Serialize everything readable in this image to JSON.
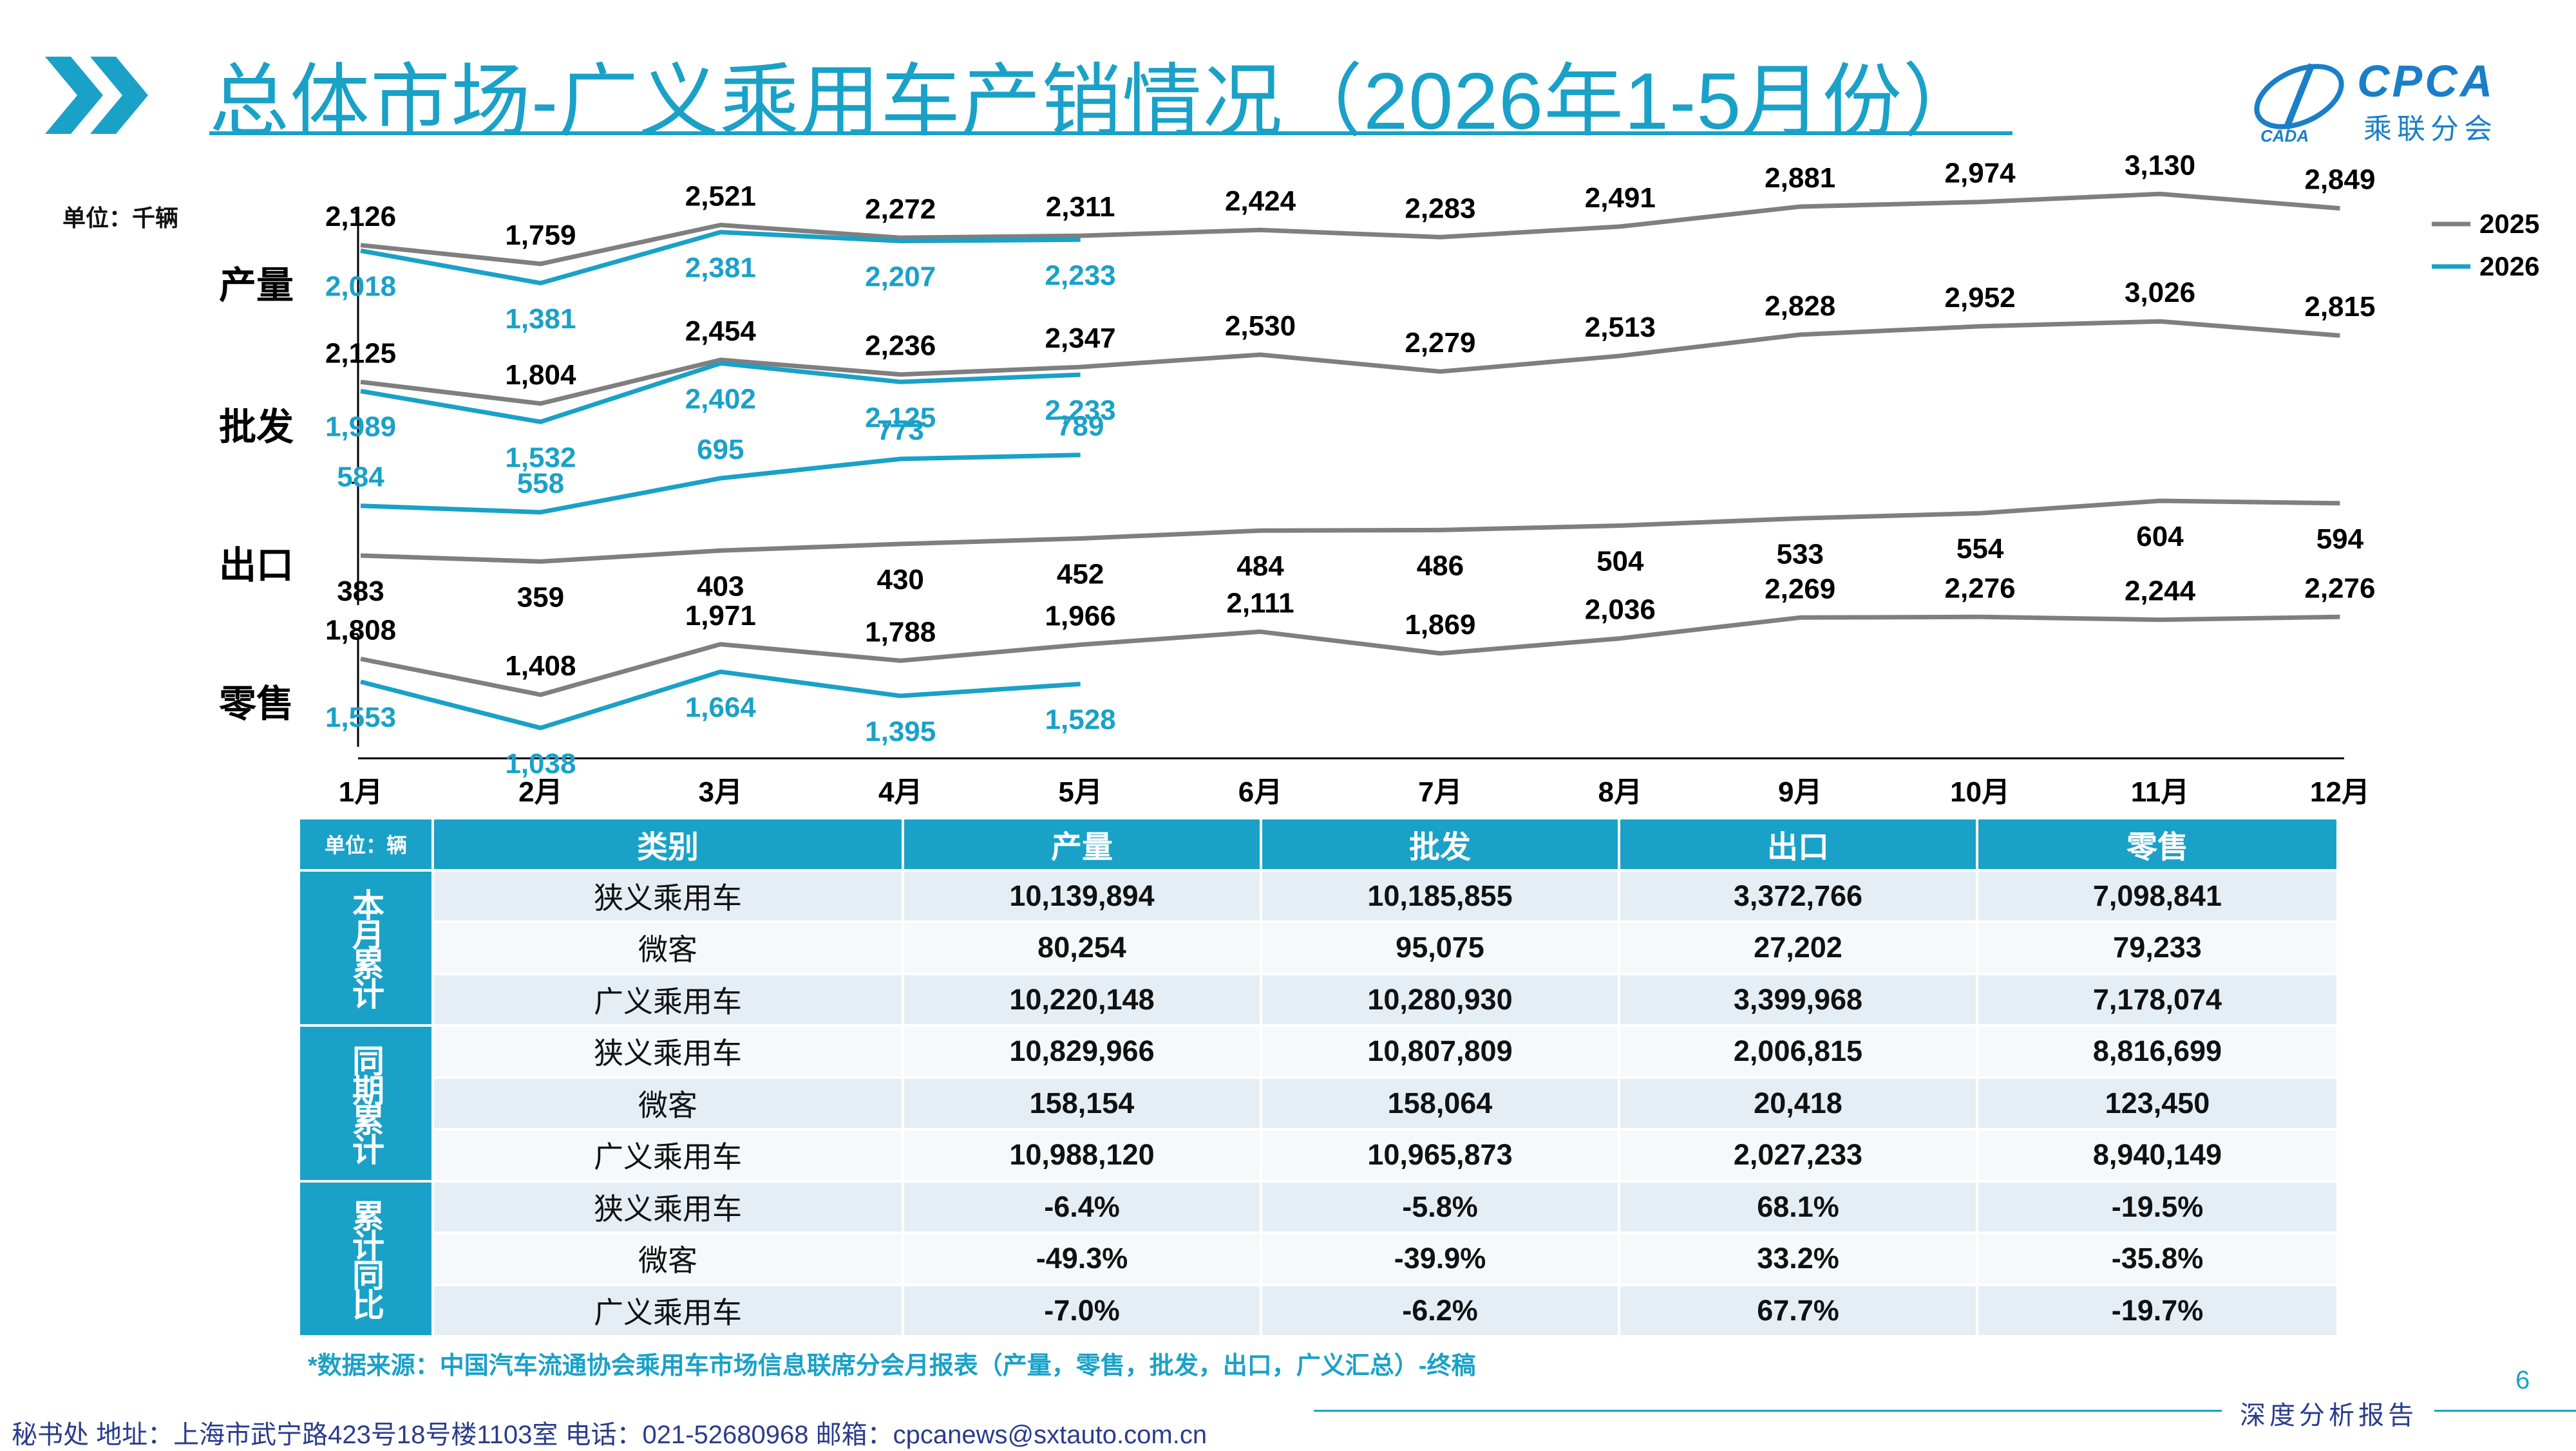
{
  "header": {
    "title": "总体市场-广义乘用车产销情况（2026年1-5月份）",
    "logo_text": "CPCA",
    "logo_sub": "乘联分会"
  },
  "chart_data": {
    "type": "line",
    "unit_label": "单位：千辆",
    "categories": [
      "1月",
      "2月",
      "3月",
      "4月",
      "5月",
      "6月",
      "7月",
      "8月",
      "9月",
      "10月",
      "11月",
      "12月"
    ],
    "legend": [
      "2025",
      "2026"
    ],
    "colors": {
      "2025": "#7f7f7f",
      "2026": "#1aa1c8"
    },
    "panels": [
      {
        "label": "产量",
        "series": [
          {
            "name": "2025",
            "values": [
              2126,
              1759,
              2521,
              2272,
              2311,
              2424,
              2283,
              2491,
              2881,
              2974,
              3130,
              2849
            ]
          },
          {
            "name": "2026",
            "values": [
              2018,
              1381,
              2381,
              2207,
              2233
            ]
          }
        ]
      },
      {
        "label": "批发",
        "series": [
          {
            "name": "2025",
            "values": [
              2125,
              1804,
              2454,
              2236,
              2347,
              2530,
              2279,
              2513,
              2828,
              2952,
              3026,
              2815
            ]
          },
          {
            "name": "2026",
            "values": [
              1989,
              1532,
              2402,
              2125,
              2233
            ]
          }
        ]
      },
      {
        "label": "出口",
        "series": [
          {
            "name": "2025",
            "values": [
              383,
              359,
              403,
              430,
              452,
              484,
              486,
              504,
              533,
              554,
              604,
              594
            ]
          },
          {
            "name": "2026",
            "values": [
              584,
              558,
              695,
              773,
              789
            ]
          }
        ]
      },
      {
        "label": "零售",
        "series": [
          {
            "name": "2025",
            "values": [
              1808,
              1408,
              1971,
              1788,
              1966,
              2111,
              1869,
              2036,
              2269,
              2276,
              2244,
              2276
            ]
          },
          {
            "name": "2026",
            "values": [
              1553,
              1038,
              1664,
              1395,
              1528
            ]
          }
        ]
      }
    ]
  },
  "table": {
    "unit": "单位：辆",
    "headers": [
      "类别",
      "产量",
      "批发",
      "出口",
      "零售"
    ],
    "groups": [
      {
        "label": "本月累计",
        "rows": [
          [
            "狭义乘用车",
            "10,139,894",
            "10,185,855",
            "3,372,766",
            "7,098,841"
          ],
          [
            "微客",
            "80,254",
            "95,075",
            "27,202",
            "79,233"
          ],
          [
            "广义乘用车",
            "10,220,148",
            "10,280,930",
            "3,399,968",
            "7,178,074"
          ]
        ]
      },
      {
        "label": "同期累计",
        "rows": [
          [
            "狭义乘用车",
            "10,829,966",
            "10,807,809",
            "2,006,815",
            "8,816,699"
          ],
          [
            "微客",
            "158,154",
            "158,064",
            "20,418",
            "123,450"
          ],
          [
            "广义乘用车",
            "10,988,120",
            "10,965,873",
            "2,027,233",
            "8,940,149"
          ]
        ]
      },
      {
        "label": "累计同比",
        "rows": [
          [
            "狭义乘用车",
            "-6.4%",
            "-5.8%",
            "68.1%",
            "-19.5%"
          ],
          [
            "微客",
            "-49.3%",
            "-39.9%",
            "33.2%",
            "-35.8%"
          ],
          [
            "广义乘用车",
            "-7.0%",
            "-6.2%",
            "67.7%",
            "-19.7%"
          ]
        ]
      }
    ]
  },
  "source": "*数据来源：中国汽车流通协会乘用车市场信息联席分会月报表（产量，零售，批发，出口，广义汇总）-终稿",
  "page_number": "6",
  "footer": {
    "contact": "秘书处   地址：上海市武宁路423号18号楼1103室  电话：021-52680968   邮箱：cpcanews@sxtauto.com.cn",
    "tag": "深度分析报告"
  }
}
